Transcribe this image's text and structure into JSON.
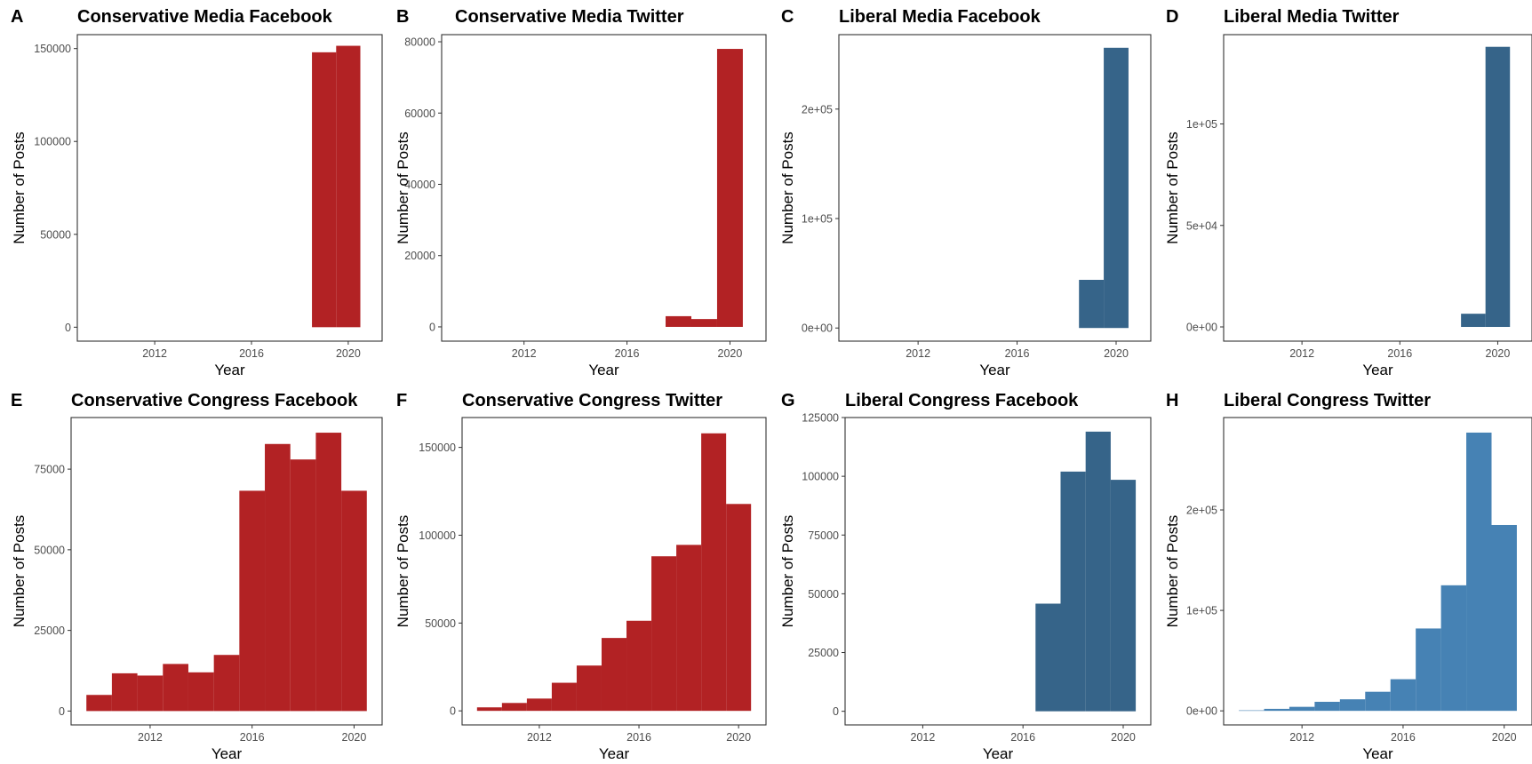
{
  "chart_data": [
    {
      "letter": "A",
      "title": "Conservative Media Facebook",
      "type": "bar",
      "xlabel": "Year",
      "ylabel": "Number of Posts",
      "color": "#b22224",
      "xlim": [
        2008.8,
        2021.4
      ],
      "ylim": [
        -7500,
        157500
      ],
      "x_ticks": [
        2012,
        2016,
        2020
      ],
      "y_ticks": [
        {
          "value": 0,
          "label": "0"
        },
        {
          "value": 50000,
          "label": "50000"
        },
        {
          "value": 100000,
          "label": "100000"
        },
        {
          "value": 150000,
          "label": "150000"
        }
      ],
      "bins": [
        {
          "x0": 2018.5,
          "x1": 2019.5,
          "value": 148000
        },
        {
          "x0": 2019.5,
          "x1": 2020.5,
          "value": 151500
        }
      ]
    },
    {
      "letter": "B",
      "title": "Conservative Media Twitter",
      "type": "bar",
      "xlabel": "Year",
      "ylabel": "Number of Posts",
      "color": "#b22224",
      "xlim": [
        2008.8,
        2021.4
      ],
      "ylim": [
        -4000,
        82000
      ],
      "x_ticks": [
        2012,
        2016,
        2020
      ],
      "y_ticks": [
        {
          "value": 0,
          "label": "0"
        },
        {
          "value": 20000,
          "label": "20000"
        },
        {
          "value": 40000,
          "label": "40000"
        },
        {
          "value": 60000,
          "label": "60000"
        },
        {
          "value": 80000,
          "label": "80000"
        }
      ],
      "bins": [
        {
          "x0": 2017.5,
          "x1": 2018.5,
          "value": 3000
        },
        {
          "x0": 2018.5,
          "x1": 2019.5,
          "value": 2200
        },
        {
          "x0": 2019.5,
          "x1": 2020.5,
          "value": 78000
        }
      ]
    },
    {
      "letter": "C",
      "title": "Liberal Media Facebook",
      "type": "bar",
      "xlabel": "Year",
      "ylabel": "Number of Posts",
      "color": "#366489",
      "xlim": [
        2008.8,
        2021.4
      ],
      "ylim": [
        -12000,
        268000
      ],
      "x_ticks": [
        2012,
        2016,
        2020
      ],
      "y_ticks": [
        {
          "value": 0,
          "label": "0e+00"
        },
        {
          "value": 100000,
          "label": "1e+05"
        },
        {
          "value": 200000,
          "label": "2e+05"
        }
      ],
      "bins": [
        {
          "x0": 2018.5,
          "x1": 2019.5,
          "value": 44000
        },
        {
          "x0": 2019.5,
          "x1": 2020.5,
          "value": 256000
        }
      ]
    },
    {
      "letter": "D",
      "title": "Liberal Media Twitter",
      "type": "bar",
      "xlabel": "Year",
      "ylabel": "Number of Posts",
      "color": "#366489",
      "xlim": [
        2008.8,
        2021.4
      ],
      "ylim": [
        -7000,
        144000
      ],
      "x_ticks": [
        2012,
        2016,
        2020
      ],
      "y_ticks": [
        {
          "value": 0,
          "label": "0e+00"
        },
        {
          "value": 50000,
          "label": "5e+04"
        },
        {
          "value": 100000,
          "label": "1e+05"
        }
      ],
      "bins": [
        {
          "x0": 2018.5,
          "x1": 2019.5,
          "value": 6500
        },
        {
          "x0": 2019.5,
          "x1": 2020.5,
          "value": 138000
        }
      ]
    },
    {
      "letter": "E",
      "title": "Conservative Congress Facebook",
      "type": "bar",
      "xlabel": "Year",
      "ylabel": "Number of Posts",
      "color": "#b22224",
      "xlim": [
        2008.9,
        2021.1
      ],
      "ylim": [
        -4300,
        91000
      ],
      "x_ticks": [
        2012,
        2016,
        2020
      ],
      "y_ticks": [
        {
          "value": 0,
          "label": "0"
        },
        {
          "value": 25000,
          "label": "25000"
        },
        {
          "value": 50000,
          "label": "50000"
        },
        {
          "value": 75000,
          "label": "75000"
        }
      ],
      "bins": [
        {
          "x0": 2009.5,
          "x1": 2010.5,
          "value": 5000
        },
        {
          "x0": 2010.5,
          "x1": 2011.5,
          "value": 11700
        },
        {
          "x0": 2011.5,
          "x1": 2012.5,
          "value": 11000
        },
        {
          "x0": 2012.5,
          "x1": 2013.5,
          "value": 14600
        },
        {
          "x0": 2013.5,
          "x1": 2014.5,
          "value": 12000
        },
        {
          "x0": 2014.5,
          "x1": 2015.5,
          "value": 17400
        },
        {
          "x0": 2015.5,
          "x1": 2016.5,
          "value": 68300
        },
        {
          "x0": 2016.5,
          "x1": 2017.5,
          "value": 82800
        },
        {
          "x0": 2017.5,
          "x1": 2018.5,
          "value": 78000
        },
        {
          "x0": 2018.5,
          "x1": 2019.5,
          "value": 86300
        },
        {
          "x0": 2019.5,
          "x1": 2020.5,
          "value": 68300
        }
      ]
    },
    {
      "letter": "F",
      "title": "Conservative Congress Twitter",
      "type": "bar",
      "xlabel": "Year",
      "ylabel": "Number of Posts",
      "color": "#b22224",
      "xlim": [
        2008.9,
        2021.1
      ],
      "ylim": [
        -8000,
        167000
      ],
      "x_ticks": [
        2012,
        2016,
        2020
      ],
      "y_ticks": [
        {
          "value": 0,
          "label": "0"
        },
        {
          "value": 50000,
          "label": "50000"
        },
        {
          "value": 100000,
          "label": "100000"
        },
        {
          "value": 150000,
          "label": "150000"
        }
      ],
      "bins": [
        {
          "x0": 2009.5,
          "x1": 2010.5,
          "value": 2000
        },
        {
          "x0": 2010.5,
          "x1": 2011.5,
          "value": 4500
        },
        {
          "x0": 2011.5,
          "x1": 2012.5,
          "value": 7000
        },
        {
          "x0": 2012.5,
          "x1": 2013.5,
          "value": 16000
        },
        {
          "x0": 2013.5,
          "x1": 2014.5,
          "value": 25800
        },
        {
          "x0": 2014.5,
          "x1": 2015.5,
          "value": 41500
        },
        {
          "x0": 2015.5,
          "x1": 2016.5,
          "value": 51300
        },
        {
          "x0": 2016.5,
          "x1": 2017.5,
          "value": 88000
        },
        {
          "x0": 2017.5,
          "x1": 2018.5,
          "value": 94500
        },
        {
          "x0": 2018.5,
          "x1": 2019.5,
          "value": 158000
        },
        {
          "x0": 2019.5,
          "x1": 2020.5,
          "value": 117800
        }
      ]
    },
    {
      "letter": "G",
      "title": "Liberal Congress Facebook",
      "type": "bar",
      "xlabel": "Year",
      "ylabel": "Number of Posts",
      "color": "#366489",
      "xlim": [
        2008.9,
        2021.1
      ],
      "ylim": [
        -5800,
        125000
      ],
      "x_ticks": [
        2012,
        2016,
        2020
      ],
      "y_ticks": [
        {
          "value": 0,
          "label": "0"
        },
        {
          "value": 25000,
          "label": "25000"
        },
        {
          "value": 50000,
          "label": "50000"
        },
        {
          "value": 75000,
          "label": "75000"
        },
        {
          "value": 100000,
          "label": "100000"
        },
        {
          "value": 125000,
          "label": "125000"
        }
      ],
      "bins": [
        {
          "x0": 2016.5,
          "x1": 2017.5,
          "value": 45800
        },
        {
          "x0": 2017.5,
          "x1": 2018.5,
          "value": 102000
        },
        {
          "x0": 2018.5,
          "x1": 2019.5,
          "value": 119000
        },
        {
          "x0": 2019.5,
          "x1": 2020.5,
          "value": 98500
        }
      ]
    },
    {
      "letter": "H",
      "title": "Liberal Congress Twitter",
      "type": "bar",
      "xlabel": "Year",
      "ylabel": "Number of Posts",
      "color": "#4682b4",
      "xlim": [
        2008.9,
        2021.1
      ],
      "ylim": [
        -14000,
        292000
      ],
      "x_ticks": [
        2012,
        2016,
        2020
      ],
      "y_ticks": [
        {
          "value": 0,
          "label": "0e+00"
        },
        {
          "value": 100000,
          "label": "1e+05"
        },
        {
          "value": 200000,
          "label": "2e+05"
        }
      ],
      "bins": [
        {
          "x0": 2009.5,
          "x1": 2010.5,
          "value": 500
        },
        {
          "x0": 2010.5,
          "x1": 2011.5,
          "value": 2000
        },
        {
          "x0": 2011.5,
          "x1": 2012.5,
          "value": 4000
        },
        {
          "x0": 2012.5,
          "x1": 2013.5,
          "value": 9000
        },
        {
          "x0": 2013.5,
          "x1": 2014.5,
          "value": 11500
        },
        {
          "x0": 2014.5,
          "x1": 2015.5,
          "value": 19000
        },
        {
          "x0": 2015.5,
          "x1": 2016.5,
          "value": 31500
        },
        {
          "x0": 2016.5,
          "x1": 2017.5,
          "value": 82000
        },
        {
          "x0": 2017.5,
          "x1": 2018.5,
          "value": 125000
        },
        {
          "x0": 2018.5,
          "x1": 2019.5,
          "value": 277000
        },
        {
          "x0": 2019.5,
          "x1": 2020.5,
          "value": 185000
        }
      ]
    }
  ]
}
